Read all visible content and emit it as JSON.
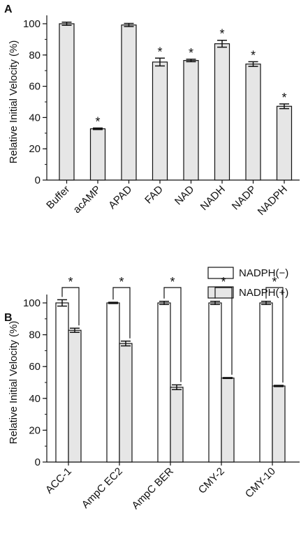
{
  "chart_data": [
    {
      "panel": "A",
      "type": "bar",
      "ylabel": "Relative Initial Velocity (%)",
      "ylim": [
        0,
        100
      ],
      "yticks": [
        0,
        20,
        40,
        60,
        80,
        100
      ],
      "categories": [
        "Buffer",
        "acAMP",
        "APAD",
        "FAD",
        "NAD",
        "NADH",
        "NADP",
        "NADPH"
      ],
      "values": [
        100,
        32.8,
        99.2,
        75.5,
        76.5,
        87.2,
        74.2,
        47.2
      ],
      "errors": [
        1.0,
        0.5,
        1.0,
        2.5,
        0.8,
        2.2,
        1.5,
        1.5
      ],
      "significance": [
        "",
        "*",
        "",
        "*",
        "*",
        "*",
        "*",
        "*"
      ],
      "bar_color": "#e6e6e6"
    },
    {
      "panel": "B",
      "type": "bar",
      "ylabel": "Relative Initial Velocity (%)",
      "ylim": [
        0,
        100
      ],
      "yticks": [
        0,
        20,
        40,
        60,
        80,
        100
      ],
      "categories": [
        "ACC-1",
        "AmpC EC2",
        "AmpC BER",
        "CMY-2",
        "CMY-10"
      ],
      "series": [
        {
          "name": "NADPH(−)",
          "values": [
            100,
            100,
            100,
            100,
            100
          ],
          "errors": [
            2.0,
            0.4,
            1.0,
            1.0,
            1.0
          ],
          "color": "#ffffff"
        },
        {
          "name": "NADPH(+)",
          "values": [
            82.8,
            74.5,
            47.0,
            52.8,
            47.8
          ],
          "errors": [
            1.3,
            1.5,
            1.5,
            0.3,
            0.4
          ],
          "color": "#e6e6e6"
        }
      ],
      "significance": [
        "*",
        "*",
        "*",
        "*",
        "*"
      ],
      "legend": "top-right"
    }
  ]
}
